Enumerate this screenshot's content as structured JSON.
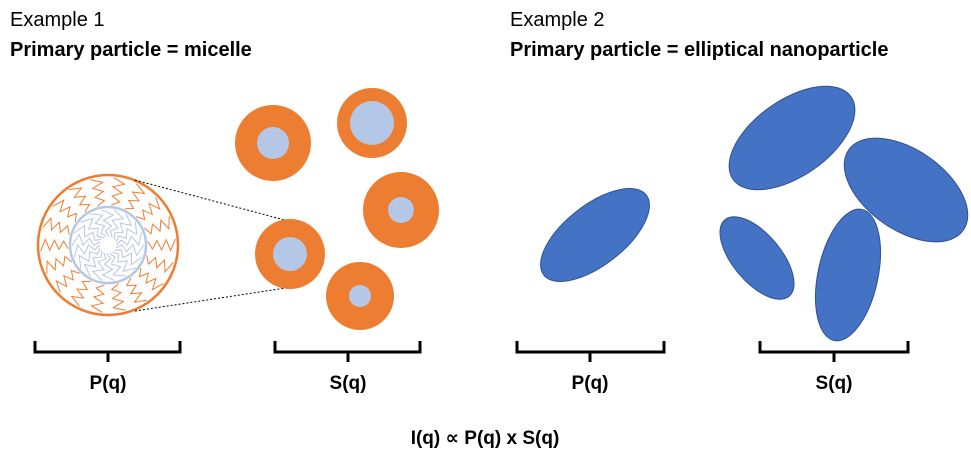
{
  "examples": [
    {
      "label": "Example 1",
      "title": "Primary particle = micelle",
      "form_factor": "P(q)",
      "structure_factor": "S(q)"
    },
    {
      "label": "Example 2",
      "title": "Primary particle = elliptical nanoparticle",
      "form_factor": "P(q)",
      "structure_factor": "S(q)"
    }
  ],
  "equation": "I(q) ∝ P(q) x S(q)"
}
